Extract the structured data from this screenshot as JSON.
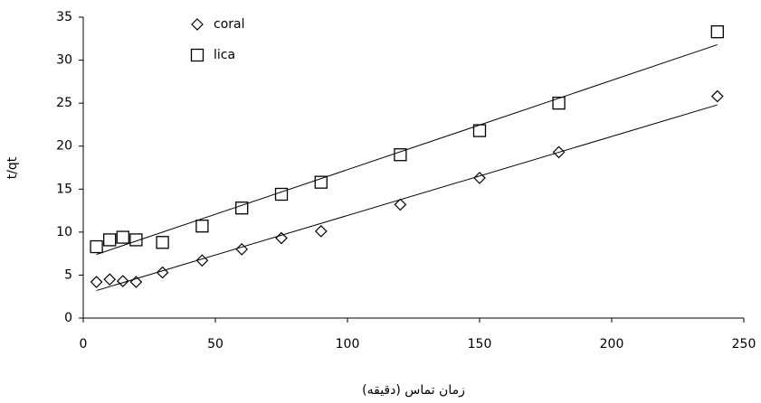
{
  "chart_data": {
    "type": "scatter",
    "x_label": "زمان تماس (دقیقه)",
    "y_label": "t/qt",
    "x": [
      5,
      10,
      15,
      20,
      30,
      45,
      60,
      75,
      90,
      120,
      150,
      180,
      240
    ],
    "series": [
      {
        "name": "coral",
        "color": "#000000",
        "marker": "diamond",
        "values": [
          4.2,
          4.5,
          4.3,
          4.2,
          5.3,
          6.7,
          8.0,
          9.3,
          10.1,
          13.2,
          16.3,
          19.3,
          25.8
        ],
        "trend": {
          "x": [
            5,
            240
          ],
          "y": [
            3.2,
            24.8
          ]
        }
      },
      {
        "name": "lica",
        "color": "#000000",
        "marker": "square",
        "values": [
          8.3,
          9.1,
          9.4,
          9.1,
          8.8,
          10.7,
          12.8,
          14.4,
          15.8,
          19.0,
          21.8,
          25.0,
          33.3
        ],
        "trend": {
          "x": [
            5,
            240
          ],
          "y": [
            7.4,
            31.8
          ]
        }
      }
    ],
    "xlim": [
      0,
      250
    ],
    "xticks": [
      0,
      50,
      100,
      150,
      200,
      250
    ],
    "ylim": [
      0,
      35
    ],
    "yticks": [
      0,
      5,
      10,
      15,
      20,
      25,
      30,
      35
    ],
    "grid": false,
    "legend": "top-left"
  }
}
